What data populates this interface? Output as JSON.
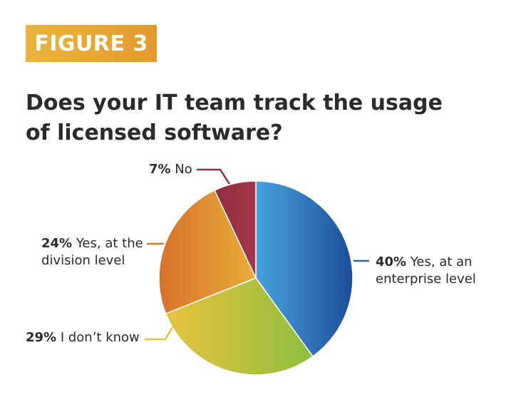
{
  "figure_label": "FIGURE 3",
  "chart_data": {
    "type": "pie",
    "title": "Does your IT team track the usage of licensed software?",
    "slices": [
      {
        "percent": "40%",
        "value": 40,
        "label_line1": "Yes, at an",
        "label_line2": "enterprise level",
        "color_start": "#45a3dd",
        "color_end": "#1f4e9a",
        "leader_color": "#2a62a8"
      },
      {
        "percent": "29%",
        "value": 29,
        "label_line1": "I don’t know",
        "label_line2": "",
        "color_start": "#e9c33c",
        "color_end": "#8cbf3f",
        "leader_color": "#e9c33c"
      },
      {
        "percent": "24%",
        "value": 24,
        "label_line1": "Yes, at the",
        "label_line2": "division level",
        "color_start": "#d8712b",
        "color_end": "#e9ad38",
        "leader_color": "#df7c2b"
      },
      {
        "percent": "7%",
        "value": 7,
        "label_line1": "No",
        "label_line2": "",
        "color_start": "#8e2e40",
        "color_end": "#a3384a",
        "leader_color": "#8e2e40"
      }
    ]
  }
}
